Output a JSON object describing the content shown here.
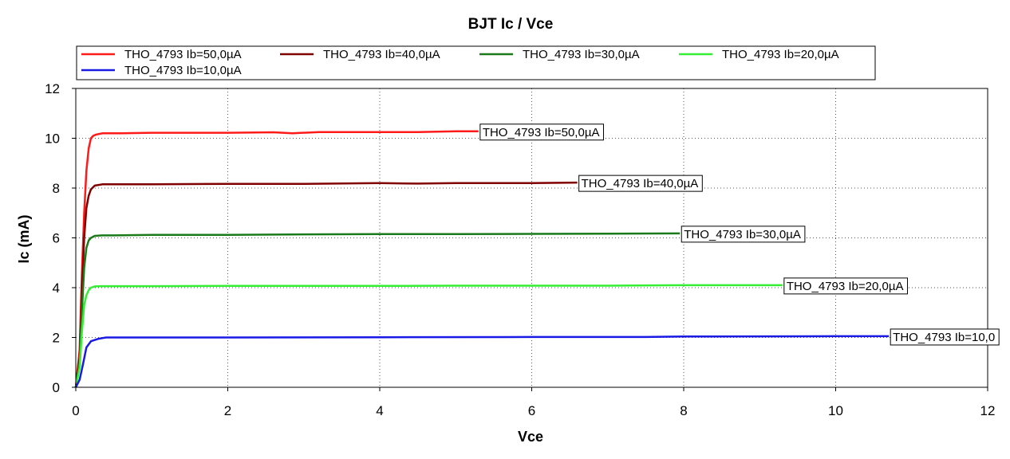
{
  "chart_data": {
    "type": "line",
    "title": "BJT Ic / Vce",
    "xlabel": "Vce",
    "ylabel": "Ic (mA)",
    "xlim": [
      0,
      12
    ],
    "ylim": [
      0,
      12
    ],
    "xticks": [
      0,
      2,
      4,
      6,
      8,
      10,
      12
    ],
    "yticks": [
      0,
      2,
      4,
      6,
      8,
      10,
      12
    ],
    "grid": true,
    "legend_position": "top",
    "series": [
      {
        "name": "THO_4793 Ib=50,0µA",
        "color": "#ff1a1a",
        "x": [
          0,
          0.05,
          0.08,
          0.11,
          0.14,
          0.17,
          0.2,
          0.23,
          0.27,
          0.35,
          0.45,
          0.6,
          1.0,
          2.0,
          2.6,
          2.85,
          3.2,
          4.0,
          4.5,
          5.0,
          5.3
        ],
        "y": [
          0,
          1.5,
          4.5,
          7.0,
          8.7,
          9.6,
          10.0,
          10.1,
          10.15,
          10.2,
          10.2,
          10.2,
          10.22,
          10.22,
          10.24,
          10.2,
          10.25,
          10.25,
          10.25,
          10.28,
          10.28
        ],
        "annotation": "THO_4793 Ib=50,0µA"
      },
      {
        "name": "THO_4793 Ib=40,0µA",
        "color": "#800000",
        "x": [
          0,
          0.05,
          0.08,
          0.11,
          0.14,
          0.17,
          0.2,
          0.25,
          0.35,
          0.5,
          1.0,
          2.0,
          3.0,
          4.0,
          4.5,
          5.0,
          6.0,
          6.6
        ],
        "y": [
          0,
          1.2,
          3.8,
          6.0,
          7.2,
          7.7,
          7.95,
          8.1,
          8.15,
          8.15,
          8.15,
          8.17,
          8.17,
          8.2,
          8.18,
          8.2,
          8.2,
          8.22
        ],
        "annotation": "THO_4793 Ib=40,0µA"
      },
      {
        "name": "THO_4793 Ib=30,0µA",
        "color": "#1a7a1a",
        "x": [
          0,
          0.05,
          0.08,
          0.11,
          0.14,
          0.17,
          0.2,
          0.25,
          0.35,
          0.5,
          1.0,
          2.0,
          3.0,
          4.0,
          5.0,
          6.0,
          7.0,
          7.95
        ],
        "y": [
          0,
          1.0,
          3.0,
          4.8,
          5.6,
          5.9,
          6.0,
          6.08,
          6.1,
          6.1,
          6.12,
          6.12,
          6.14,
          6.15,
          6.15,
          6.16,
          6.17,
          6.18
        ],
        "annotation": "THO_4793 Ib=30,0µA"
      },
      {
        "name": "THO_4793 Ib=20,0µA",
        "color": "#33ee33",
        "x": [
          0,
          0.05,
          0.08,
          0.11,
          0.14,
          0.17,
          0.2,
          0.25,
          0.35,
          0.5,
          1.0,
          2.0,
          3.0,
          4.0,
          5.0,
          6.0,
          7.0,
          8.0,
          9.3
        ],
        "y": [
          0,
          0.8,
          2.2,
          3.3,
          3.7,
          3.9,
          4.0,
          4.05,
          4.06,
          4.06,
          4.06,
          4.07,
          4.07,
          4.07,
          4.08,
          4.08,
          4.08,
          4.1,
          4.1
        ],
        "annotation": "THO_4793 Ib=20,0µA"
      },
      {
        "name": "THO_4793 Ib=10,0µA",
        "color": "#1a1ae6",
        "x": [
          0,
          0.05,
          0.1,
          0.14,
          0.2,
          0.3,
          0.4,
          0.6,
          1.0,
          2.0,
          4.0,
          6.0,
          7.5,
          8.0,
          10.0,
          10.7
        ],
        "y": [
          0,
          0.3,
          1.0,
          1.6,
          1.85,
          1.95,
          2.0,
          2.0,
          2.0,
          2.0,
          2.01,
          2.02,
          2.02,
          2.04,
          2.05,
          2.05
        ],
        "annotation": "THO_4793 Ib=10,0"
      }
    ]
  }
}
